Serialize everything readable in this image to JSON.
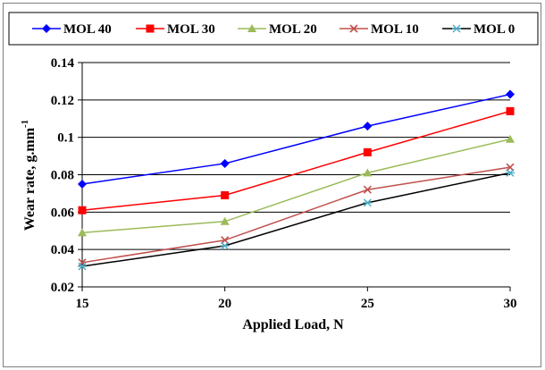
{
  "chart_data": {
    "type": "line",
    "x": [
      15,
      20,
      25,
      30
    ],
    "xlabel": "Applied Load, N",
    "ylabel": "Wear rate,  g.mm",
    "ylabel_superscript": "-1",
    "xlim": [
      15,
      30
    ],
    "ylim": [
      0.02,
      0.14
    ],
    "x_ticks": [
      "15",
      "20",
      "25",
      "30"
    ],
    "y_ticks": [
      "0.02",
      "0.04",
      "0.06",
      "0.08",
      "0.1",
      "0.12",
      "0.14"
    ],
    "grid": "horizontal",
    "legend_position": "top",
    "series": [
      {
        "name": "MOL 40",
        "values": [
          0.075,
          0.086,
          0.106,
          0.123
        ],
        "color": "#0000ff",
        "marker": "diamond"
      },
      {
        "name": "MOL 30",
        "values": [
          0.061,
          0.069,
          0.092,
          0.114
        ],
        "color": "#ff0000",
        "marker": "square"
      },
      {
        "name": "MOL 20",
        "values": [
          0.049,
          0.055,
          0.081,
          0.099
        ],
        "color": "#9bbb59",
        "marker": "triangle"
      },
      {
        "name": "MOL 10",
        "values": [
          0.033,
          0.045,
          0.072,
          0.084
        ],
        "color": "#c0504d",
        "marker": "x"
      },
      {
        "name": "MOL 0",
        "values": [
          0.031,
          0.042,
          0.065,
          0.081
        ],
        "color": "#000000",
        "marker": "asterisk",
        "marker_color": "#4bacc6"
      }
    ]
  }
}
